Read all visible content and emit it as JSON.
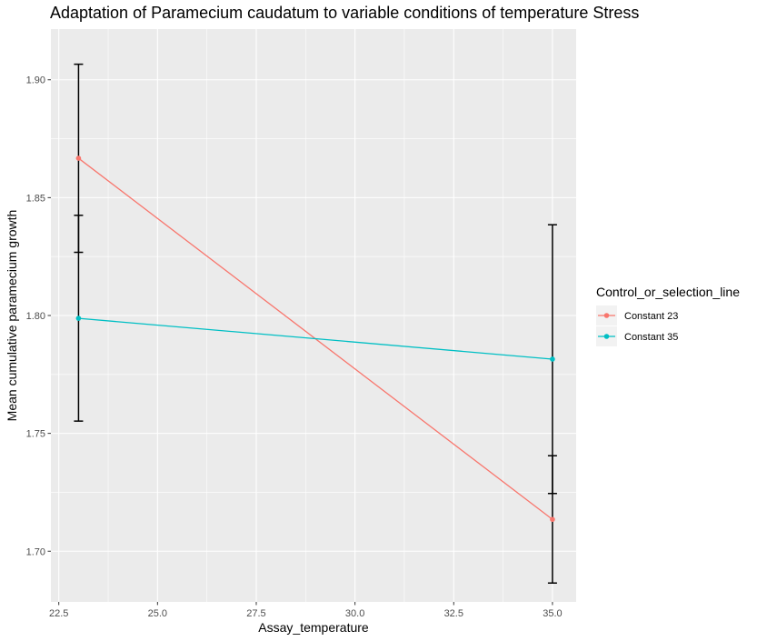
{
  "chart_data": {
    "type": "line",
    "title": "Adaptation of Paramecium caudatum to variable conditions of temperature Stress",
    "xlabel": "Assay_temperature",
    "ylabel": "Mean cumulative paramecium growth",
    "xlim": [
      22.3,
      35.6
    ],
    "ylim": [
      1.6785,
      1.9215
    ],
    "x_ticks": [
      22.5,
      25.0,
      27.5,
      30.0,
      32.5,
      35.0
    ],
    "x_tick_labels": [
      "22.5",
      "25.0",
      "27.5",
      "30.0",
      "32.5",
      "35.0"
    ],
    "y_ticks": [
      1.7,
      1.75,
      1.8,
      1.85,
      1.9
    ],
    "y_tick_labels": [
      "1.70",
      "1.75",
      "1.80",
      "1.85",
      "1.90"
    ],
    "grid": true,
    "legend": {
      "title": "Control_or_selection_line",
      "position": "right"
    },
    "series": [
      {
        "name": "Constant 23",
        "color": "#F8766D",
        "x": [
          23,
          35
        ],
        "y": [
          1.8667,
          1.7135
        ],
        "error_low": [
          1.8268,
          1.6865
        ],
        "error_high": [
          1.9066,
          1.7405
        ]
      },
      {
        "name": "Constant 35",
        "color": "#00BFC4",
        "x": [
          23,
          35
        ],
        "y": [
          1.7988,
          1.7815
        ],
        "error_low": [
          1.7552,
          1.7245
        ],
        "error_high": [
          1.8425,
          1.8385
        ]
      }
    ]
  }
}
